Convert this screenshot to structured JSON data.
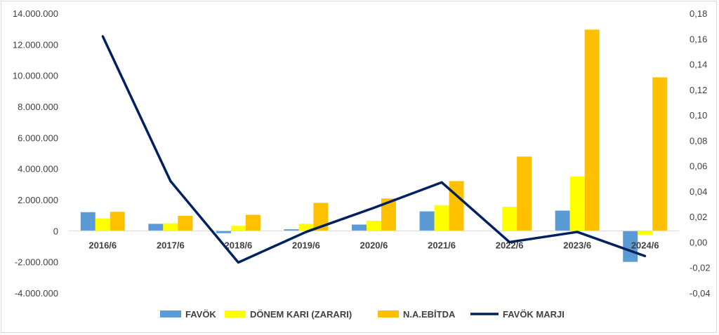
{
  "chart_data": {
    "type": "bar",
    "categories": [
      "2016/6",
      "2017/6",
      "2018/6",
      "2019/6",
      "2020/6",
      "2021/6",
      "2022/6",
      "2023/6",
      "2024/6"
    ],
    "series": [
      {
        "name": "FAVÖK",
        "kind": "bar",
        "axis": "left",
        "color": "#5b9bd5",
        "values": [
          1200000,
          450000,
          -150000,
          100000,
          400000,
          1250000,
          0,
          1300000,
          -2000000
        ]
      },
      {
        "name": "DÖNEM KARI (ZARARI)",
        "kind": "bar",
        "axis": "left",
        "color": "#ffff00",
        "values": [
          800000,
          480000,
          320000,
          450000,
          650000,
          1650000,
          1550000,
          3500000,
          -250000
        ]
      },
      {
        "name": "N.A.EBİTDA",
        "kind": "bar",
        "axis": "left",
        "color": "#ffc000",
        "values": [
          1220000,
          960000,
          1030000,
          1800000,
          2080000,
          3200000,
          4780000,
          12950000,
          9880000
        ]
      },
      {
        "name": "FAVÖK MARJI",
        "kind": "line",
        "axis": "right",
        "color": "#002060",
        "values": [
          0.162,
          0.048,
          -0.016,
          0.008,
          0.027,
          0.047,
          0.0,
          0.008,
          -0.011
        ]
      }
    ],
    "y_left": {
      "min": -4000000,
      "max": 14000000,
      "ticks": [
        -4000000,
        -2000000,
        0,
        2000000,
        4000000,
        6000000,
        8000000,
        10000000,
        12000000,
        14000000
      ],
      "tick_labels": [
        "-4.000.000",
        "-2.000.000",
        "0",
        "2.000.000",
        "4.000.000",
        "6.000.000",
        "8.000.000",
        "10.000.000",
        "12.000.000",
        "14.000.000"
      ]
    },
    "y_right": {
      "min": -0.04,
      "max": 0.18,
      "ticks": [
        -0.04,
        -0.02,
        0,
        0.02,
        0.04,
        0.06,
        0.08,
        0.1,
        0.12,
        0.14,
        0.16,
        0.18
      ],
      "tick_labels": [
        "-0,04",
        "-0,02",
        "0,00",
        "0,02",
        "0,04",
        "0,06",
        "0,08",
        "0,10",
        "0,12",
        "0,14",
        "0,16",
        "0,18"
      ]
    },
    "grid": false,
    "legend_position": "bottom",
    "title": "",
    "xlabel": "",
    "ylabel": ""
  }
}
